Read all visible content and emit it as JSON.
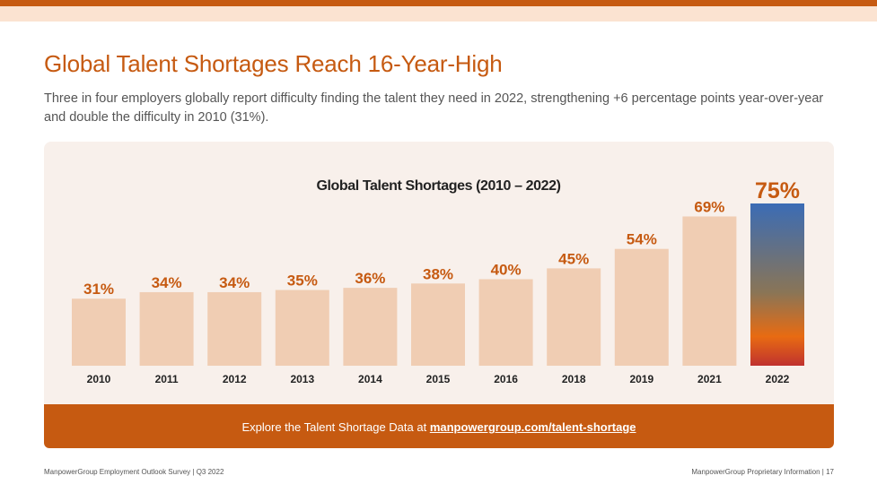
{
  "page": {
    "title": "Global Talent Shortages Reach 16-Year-High",
    "subtitle": "Three in four employers globally report difficulty finding the talent they need in 2022, strengthening +6 percentage points year-over-year and double the difficulty in 2010 (31%).",
    "cta_text": "Explore the Talent Shortage Data at ",
    "cta_link": "manpowergroup.com/talent-shortage",
    "footer_left": "ManpowerGroup Employment Outlook Survey | Q3 2022",
    "footer_right": "ManpowerGroup Proprietary Information | 17"
  },
  "colors": {
    "accent": "#c65a11",
    "bar": "#f0cdb3",
    "highlight_gradient": [
      "#3b6cb5",
      "#8a7556",
      "#e86b12",
      "#c0322f"
    ],
    "panel": "#f8f0eb"
  },
  "chart_data": {
    "type": "bar",
    "title": "Global Talent Shortages (2010 – 2022)",
    "categories": [
      "2010",
      "2011",
      "2012",
      "2013",
      "2014",
      "2015",
      "2016",
      "2018",
      "2019",
      "2021",
      "2022"
    ],
    "values": [
      31,
      34,
      34,
      35,
      36,
      38,
      40,
      45,
      54,
      69,
      75
    ],
    "value_labels": [
      "31%",
      "34%",
      "34%",
      "35%",
      "36%",
      "38%",
      "40%",
      "45%",
      "54%",
      "69%",
      "75%"
    ],
    "highlight_category": "2022",
    "ylim": [
      0,
      75
    ],
    "grid": false,
    "legend": "none"
  }
}
